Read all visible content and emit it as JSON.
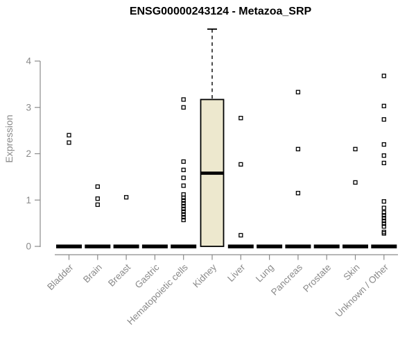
{
  "chart_data": {
    "type": "boxplot",
    "title": "ENSG00000243124 - Metazoa_SRP",
    "ylabel": "Expression",
    "xlabel": "",
    "ylim": [
      0,
      4
    ],
    "yticks": [
      0,
      1,
      2,
      3,
      4
    ],
    "grid": false,
    "legend": "none",
    "categories": [
      "Bladder",
      "Brain",
      "Breast",
      "Gastric",
      "Hematopoietic cells",
      "Kidney",
      "Liver",
      "Lung",
      "Pancreas",
      "Prostate",
      "Skin",
      "Unknown / Other"
    ],
    "groups": [
      {
        "name": "Bladder",
        "zero_bar": true,
        "points": [
          2.4,
          2.24
        ]
      },
      {
        "name": "Brain",
        "zero_bar": true,
        "points": [
          1.29,
          1.03,
          0.9
        ]
      },
      {
        "name": "Breast",
        "zero_bar": true,
        "points": [
          1.06
        ]
      },
      {
        "name": "Gastric",
        "zero_bar": true,
        "points": []
      },
      {
        "name": "Hematopoietic cells",
        "zero_bar": true,
        "points": [
          3.17,
          3.0,
          1.83,
          1.65,
          1.48,
          1.31,
          1.12,
          1.05,
          0.99,
          0.93,
          0.87,
          0.81,
          0.75,
          0.69,
          0.63,
          0.57
        ]
      },
      {
        "name": "Kidney",
        "zero_bar": false,
        "box": {
          "whisker_low": 0,
          "q1": 0,
          "median": 1.58,
          "q3": 3.17,
          "whisker_high": 4.69
        },
        "points": []
      },
      {
        "name": "Liver",
        "zero_bar": true,
        "points": [
          2.77,
          1.77,
          0.24
        ]
      },
      {
        "name": "Lung",
        "zero_bar": true,
        "points": []
      },
      {
        "name": "Pancreas",
        "zero_bar": true,
        "points": [
          3.33,
          2.1,
          1.15
        ]
      },
      {
        "name": "Prostate",
        "zero_bar": true,
        "points": []
      },
      {
        "name": "Skin",
        "zero_bar": true,
        "points": [
          2.1,
          1.38
        ]
      },
      {
        "name": "Unknown / Other",
        "zero_bar": true,
        "points": [
          3.68,
          3.03,
          2.74,
          2.2,
          1.96,
          1.8,
          0.97,
          0.83,
          0.73,
          0.67,
          0.61,
          0.55,
          0.49,
          0.43,
          0.31,
          0.28
        ]
      }
    ],
    "colors": {
      "box_fill": "#EDE8CE",
      "box_border": "#000000",
      "points": "#000000",
      "zero_bar": "#000000",
      "axis": "#8a8a8a",
      "tick_label": "#8a8a8a",
      "title": "#000000",
      "background": "#ffffff"
    }
  }
}
